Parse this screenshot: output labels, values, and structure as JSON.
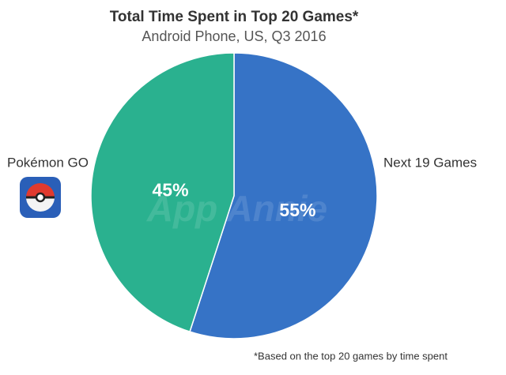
{
  "chart_data": {
    "type": "pie",
    "title": "Total Time Spent in Top 20 Games*",
    "subtitle": "Android Phone, US, Q3 2016",
    "categories": [
      "Next 19 Games",
      "Pokémon GO"
    ],
    "values": [
      55,
      45
    ],
    "value_labels": [
      "55%",
      "45%"
    ],
    "colors": [
      "#3673c6",
      "#2ab18f"
    ],
    "watermark": "App Annie",
    "footnote": "*Based on the top 20 games by time spent"
  }
}
